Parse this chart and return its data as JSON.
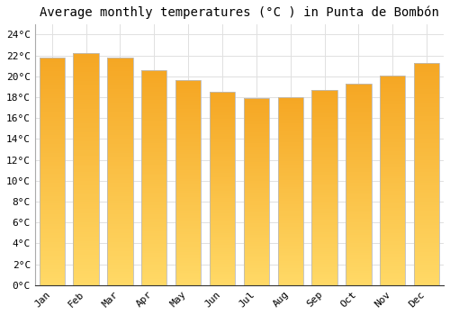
{
  "title": "Average monthly temperatures (°C ) in Punta de Bombón",
  "months": [
    "Jan",
    "Feb",
    "Mar",
    "Apr",
    "May",
    "Jun",
    "Jul",
    "Aug",
    "Sep",
    "Oct",
    "Nov",
    "Dec"
  ],
  "values": [
    21.8,
    22.2,
    21.8,
    20.6,
    19.6,
    18.5,
    17.9,
    18.0,
    18.7,
    19.3,
    20.1,
    21.3
  ],
  "bar_color_top": "#F5A623",
  "bar_color_bottom": "#FFD966",
  "bar_edge_color": "#BBBBBB",
  "ylim": [
    0,
    25
  ],
  "yticks": [
    0,
    2,
    4,
    6,
    8,
    10,
    12,
    14,
    16,
    18,
    20,
    22,
    24
  ],
  "background_color": "#FFFFFF",
  "grid_color": "#E0E0E0",
  "title_fontsize": 10,
  "tick_fontsize": 8,
  "bar_width": 0.75
}
